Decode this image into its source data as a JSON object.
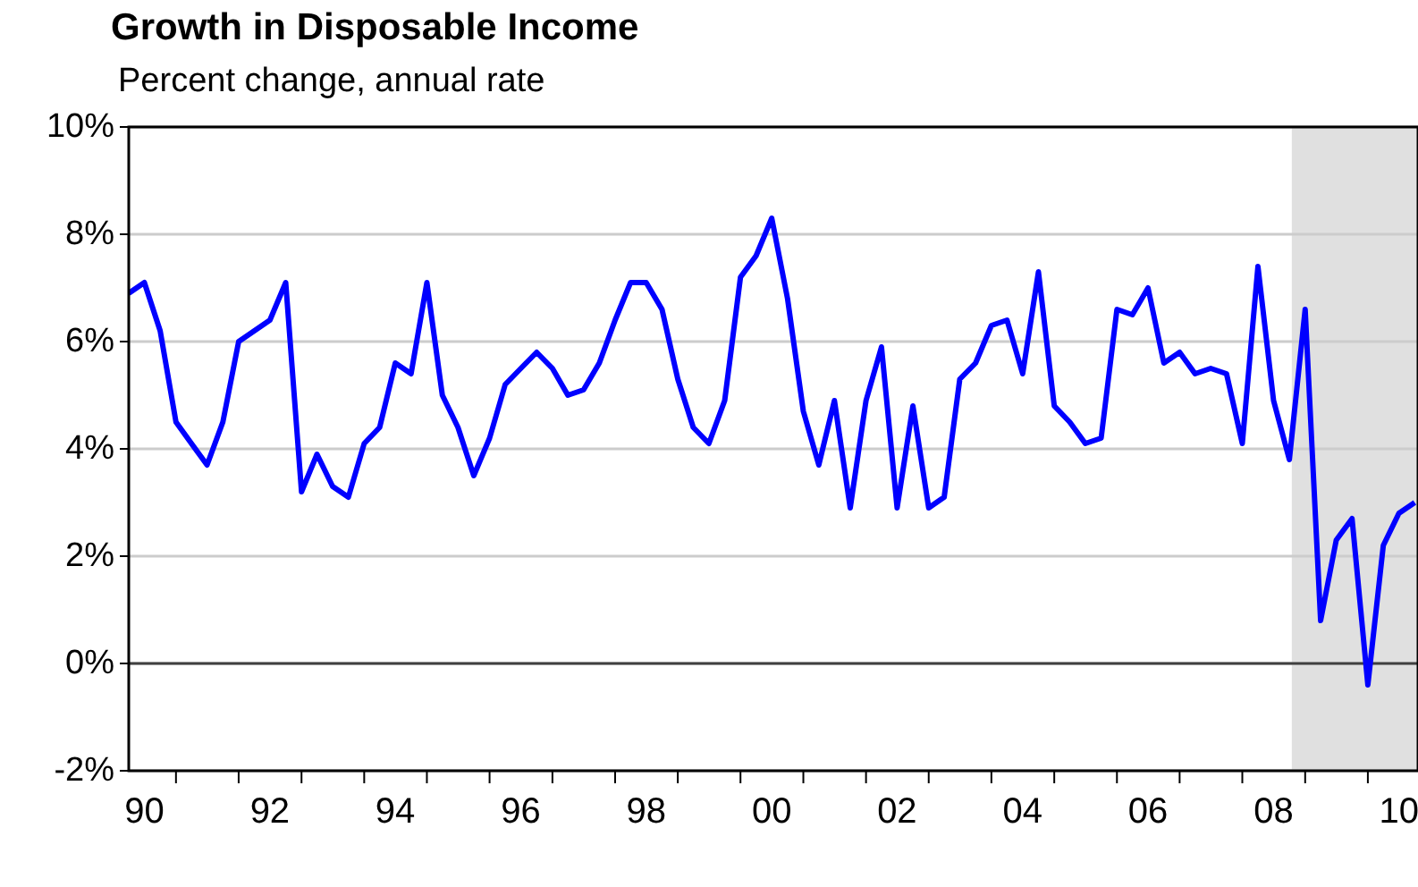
{
  "chart_data": {
    "type": "line",
    "title": "Growth in Disposable Income",
    "subtitle": "Percent change, annual rate",
    "xlim": [
      "1990-04",
      "2010-10-20"
    ],
    "xticks": [
      {
        "value": "1990-07",
        "label": "90"
      },
      {
        "value": "1991-01",
        "label": null
      },
      {
        "value": "1992-01",
        "label": null
      },
      {
        "value": "1992-07",
        "label": "92"
      },
      {
        "value": "1993-01",
        "label": null
      },
      {
        "value": "1994-01",
        "label": null
      },
      {
        "value": "1994-07",
        "label": "94"
      },
      {
        "value": "1995-01",
        "label": null
      },
      {
        "value": "1996-01",
        "label": null
      },
      {
        "value": "1996-07",
        "label": "96"
      },
      {
        "value": "1997-01",
        "label": null
      },
      {
        "value": "1998-01",
        "label": null
      },
      {
        "value": "1998-07",
        "label": "98"
      },
      {
        "value": "1999-01",
        "label": null
      },
      {
        "value": "2000-01",
        "label": null
      },
      {
        "value": "2000-07",
        "label": "00"
      },
      {
        "value": "2001-01",
        "label": null
      },
      {
        "value": "2002-01",
        "label": null
      },
      {
        "value": "2002-07",
        "label": "02"
      },
      {
        "value": "2003-01",
        "label": null
      },
      {
        "value": "2004-01",
        "label": null
      },
      {
        "value": "2004-07",
        "label": "04"
      },
      {
        "value": "2005-01",
        "label": null
      },
      {
        "value": "2006-01",
        "label": null
      },
      {
        "value": "2006-07",
        "label": "06"
      },
      {
        "value": "2007-01",
        "label": null
      },
      {
        "value": "2008-01",
        "label": null
      },
      {
        "value": "2008-07",
        "label": "08"
      },
      {
        "value": "2009-01",
        "label": null
      },
      {
        "value": "2010-01",
        "label": null
      },
      {
        "value": "2010-07",
        "label": "10"
      }
    ],
    "ylim": [
      -2,
      10
    ],
    "yticks": [
      {
        "value": -2,
        "label": "-2%"
      },
      {
        "value": 0,
        "label": "0%"
      },
      {
        "value": 2,
        "label": "2%"
      },
      {
        "value": 4,
        "label": "4%"
      },
      {
        "value": 6,
        "label": "6%"
      },
      {
        "value": 8,
        "label": "8%"
      },
      {
        "value": 10,
        "label": "10%"
      }
    ],
    "grid": "y",
    "line_style": "solid",
    "x": [
      "1990-04",
      "1990-07",
      "1990-10",
      "1991-01",
      "1991-04",
      "1991-07",
      "1991-10",
      "1992-01",
      "1992-04",
      "1992-07",
      "1992-10",
      "1993-01",
      "1993-04",
      "1993-07",
      "1993-10",
      "1994-01",
      "1994-04",
      "1994-07",
      "1994-10",
      "1995-01",
      "1995-04",
      "1995-07",
      "1995-10",
      "1996-01",
      "1996-04",
      "1996-07",
      "1996-10",
      "1997-01",
      "1997-04",
      "1997-07",
      "1997-10",
      "1998-01",
      "1998-04",
      "1998-07",
      "1998-10",
      "1999-01",
      "1999-04",
      "1999-07",
      "1999-10",
      "2000-01",
      "2000-04",
      "2000-07",
      "2000-10",
      "2001-01",
      "2001-04",
      "2001-07",
      "2001-10",
      "2002-01",
      "2002-04",
      "2002-07",
      "2002-10",
      "2003-01",
      "2003-04",
      "2003-07",
      "2003-10",
      "2004-01",
      "2004-04",
      "2004-07",
      "2004-10",
      "2005-01",
      "2005-04",
      "2005-07",
      "2005-10",
      "2006-01",
      "2006-04",
      "2006-07",
      "2006-10",
      "2007-01",
      "2007-04",
      "2007-07",
      "2007-10",
      "2008-01",
      "2008-04",
      "2008-07",
      "2008-10",
      "2009-01",
      "2009-04",
      "2009-07",
      "2009-10",
      "2010-01",
      "2010-04",
      "2010-07",
      "2010-10"
    ],
    "series": [
      {
        "color": "#0000ff",
        "values": [
          6.9,
          7.1,
          6.2,
          4.5,
          4.1,
          3.7,
          4.5,
          6.0,
          6.2,
          6.4,
          7.1,
          3.2,
          3.9,
          3.3,
          3.1,
          4.1,
          4.4,
          5.6,
          5.4,
          7.1,
          5.0,
          4.4,
          3.5,
          4.2,
          5.2,
          5.5,
          5.8,
          5.5,
          5.0,
          5.1,
          5.6,
          6.4,
          7.1,
          7.1,
          6.6,
          5.3,
          4.4,
          4.1,
          4.9,
          7.2,
          7.6,
          8.3,
          6.8,
          4.7,
          3.7,
          4.9,
          2.9,
          4.9,
          5.9,
          2.9,
          4.8,
          2.9,
          3.1,
          5.3,
          5.6,
          6.3,
          6.4,
          5.4,
          7.3,
          4.8,
          4.5,
          4.1,
          4.2,
          6.6,
          6.5,
          7.0,
          5.6,
          5.8,
          5.4,
          5.5,
          5.4,
          4.1,
          7.4,
          4.9,
          3.8,
          6.6,
          0.8,
          2.3,
          2.7,
          -0.4,
          2.2,
          2.8,
          3.0
        ]
      }
    ],
    "ref_lines": [
      {
        "axis": "y",
        "value": 0,
        "color": "#404040"
      }
    ],
    "bands": [
      {
        "axis": "x",
        "from": "2008-10-15",
        "to": "2010-10-20",
        "color": "#e0e0e0"
      }
    ]
  }
}
